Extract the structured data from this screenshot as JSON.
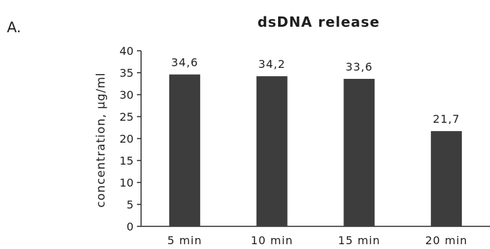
{
  "panel_label": "A.",
  "chart_data": {
    "type": "bar",
    "title": "dsDNA release",
    "xlabel": "",
    "ylabel": "concentration, μg/ml",
    "categories": [
      "5 min",
      "10 min",
      "15 min",
      "20 min"
    ],
    "values": [
      34.6,
      34.2,
      33.6,
      21.7
    ],
    "data_labels": [
      "34,6",
      "34,2",
      "33,6",
      "21,7"
    ],
    "ylim": [
      0,
      40
    ],
    "yticks": [
      0,
      5,
      10,
      15,
      20,
      25,
      30,
      35,
      40
    ],
    "grid": false,
    "legend": "none",
    "colors": {
      "bar": "#3d3d3d",
      "axis": "#2a2a2a",
      "text": "#1f1f1f"
    }
  }
}
